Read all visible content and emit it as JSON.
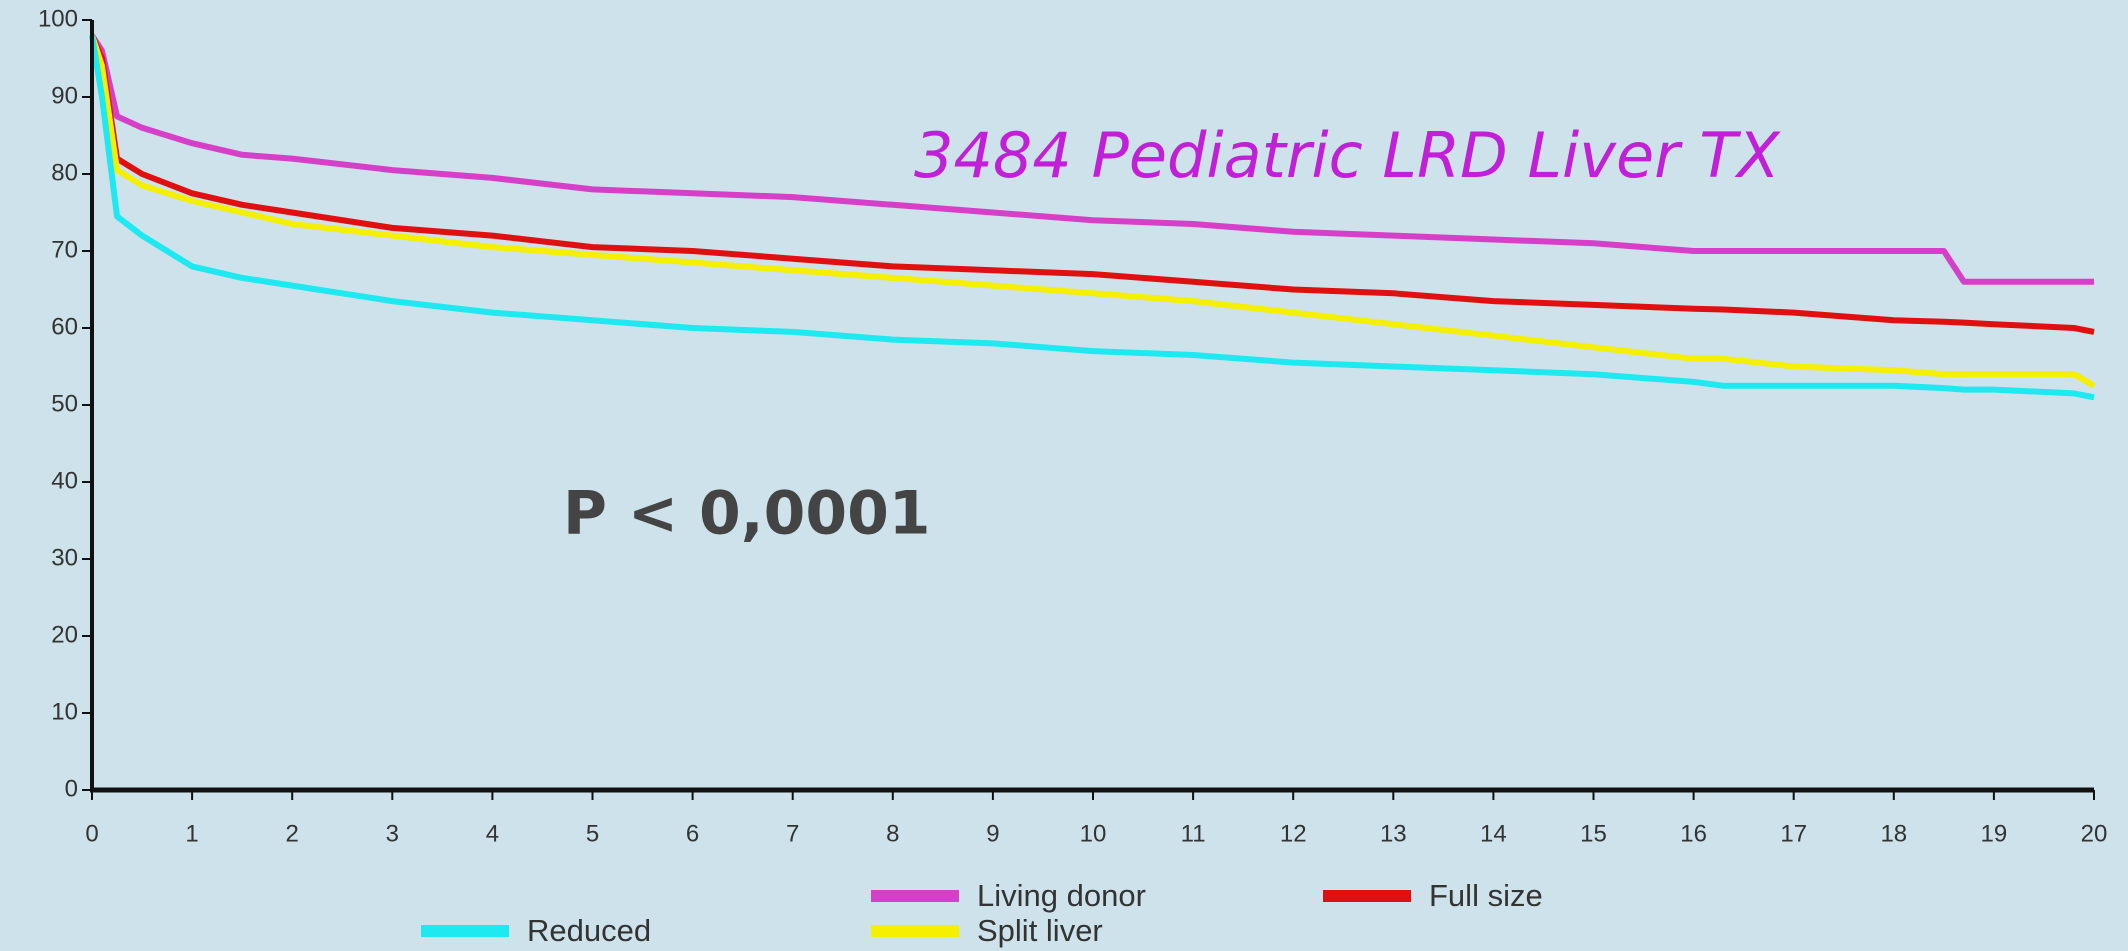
{
  "chart_data": {
    "type": "line",
    "annotations": [
      "3484 Pediatric LRD Liver TX",
      "P < 0,0001"
    ],
    "x": [
      0,
      0.1,
      0.25,
      0.5,
      1,
      1.5,
      2,
      3,
      4,
      5,
      6,
      7,
      8,
      9,
      10,
      11,
      12,
      13,
      14,
      15,
      16,
      16.3,
      17,
      18,
      18.5,
      18.7,
      19,
      19.8,
      20
    ],
    "series": [
      {
        "name": "Living donor",
        "color": "#d63fc8",
        "values": [
          98,
          96,
          87.5,
          86,
          84,
          82.5,
          82,
          80.5,
          79.5,
          78,
          77.5,
          77,
          76,
          75,
          74,
          73.5,
          72.5,
          72,
          71.5,
          71,
          70,
          70,
          70,
          70,
          70,
          66,
          66,
          66,
          66
        ]
      },
      {
        "name": "Full size",
        "color": "#e01010",
        "values": [
          98,
          95,
          82,
          80,
          77.5,
          76,
          75,
          73,
          72,
          70.5,
          70,
          69,
          68,
          67.5,
          67,
          66,
          65,
          64.5,
          63.5,
          63,
          62.5,
          62.4,
          62,
          61,
          60.8,
          60.7,
          60.5,
          60,
          59.5
        ]
      },
      {
        "name": "Split liver",
        "color": "#f5ef00",
        "values": [
          98,
          94,
          80.5,
          78.5,
          76.5,
          75,
          73.5,
          72,
          70.5,
          69.5,
          68.5,
          67.5,
          66.5,
          65.5,
          64.5,
          63.5,
          62,
          60.5,
          59,
          57.5,
          56,
          56,
          55,
          54.5,
          54,
          54,
          54,
          54,
          52.5
        ]
      },
      {
        "name": "Reduced",
        "color": "#1ee8f0",
        "values": [
          98,
          90,
          74.5,
          72,
          68,
          66.5,
          65.5,
          63.5,
          62,
          61,
          60,
          59.5,
          58.5,
          58,
          57,
          56.5,
          55.5,
          55,
          54.5,
          54,
          53,
          52.5,
          52.5,
          52.5,
          52.2,
          52,
          52,
          51.5,
          51
        ]
      }
    ],
    "xlim": [
      0,
      20
    ],
    "xticks": [
      0,
      1,
      2,
      3,
      4,
      5,
      6,
      7,
      8,
      9,
      10,
      11,
      12,
      13,
      14,
      15,
      16,
      17,
      18,
      19,
      20
    ],
    "ylim": [
      0,
      100
    ],
    "yticks": [
      0,
      10,
      20,
      30,
      40,
      50,
      60,
      70,
      80,
      90,
      100
    ]
  }
}
